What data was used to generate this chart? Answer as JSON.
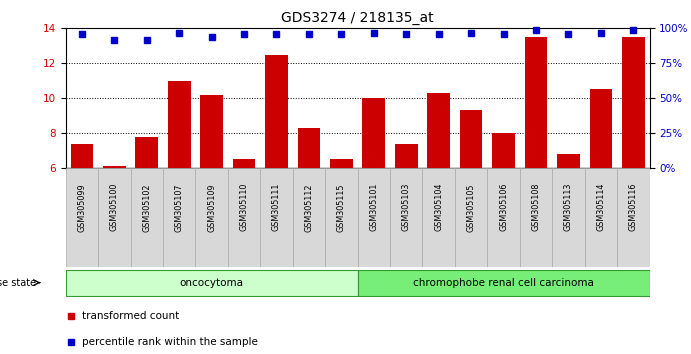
{
  "title": "GDS3274 / 218135_at",
  "categories": [
    "GSM305099",
    "GSM305100",
    "GSM305102",
    "GSM305107",
    "GSM305109",
    "GSM305110",
    "GSM305111",
    "GSM305112",
    "GSM305115",
    "GSM305101",
    "GSM305103",
    "GSM305104",
    "GSM305105",
    "GSM305106",
    "GSM305108",
    "GSM305113",
    "GSM305114",
    "GSM305116"
  ],
  "bar_values": [
    7.4,
    6.1,
    7.8,
    11.0,
    10.2,
    6.5,
    12.5,
    8.3,
    6.5,
    10.0,
    7.4,
    10.3,
    9.3,
    8.0,
    13.5,
    6.8,
    10.5,
    13.5
  ],
  "percentile_values_pct": [
    96,
    92,
    92,
    97,
    94,
    96,
    96,
    96,
    96,
    97,
    96,
    96,
    97,
    96,
    99,
    96,
    97,
    99
  ],
  "bar_color": "#cc0000",
  "percentile_color": "#0000cc",
  "ylim_left": [
    6,
    14
  ],
  "yticks_left": [
    6,
    8,
    10,
    12,
    14
  ],
  "yticks_right": [
    0,
    25,
    50,
    75,
    100
  ],
  "grid_values": [
    8,
    10,
    12
  ],
  "group1_label": "oncocytoma",
  "group1_count": 9,
  "group2_label": "chromophobe renal cell carcinoma",
  "group2_count": 9,
  "group1_color": "#ccffcc",
  "group2_color": "#77ee77",
  "disease_state_label": "disease state",
  "legend_bar_label": "transformed count",
  "legend_percentile_label": "percentile rank within the sample",
  "background_color": "#ffffff",
  "title_fontsize": 10,
  "tick_fontsize": 7.5
}
